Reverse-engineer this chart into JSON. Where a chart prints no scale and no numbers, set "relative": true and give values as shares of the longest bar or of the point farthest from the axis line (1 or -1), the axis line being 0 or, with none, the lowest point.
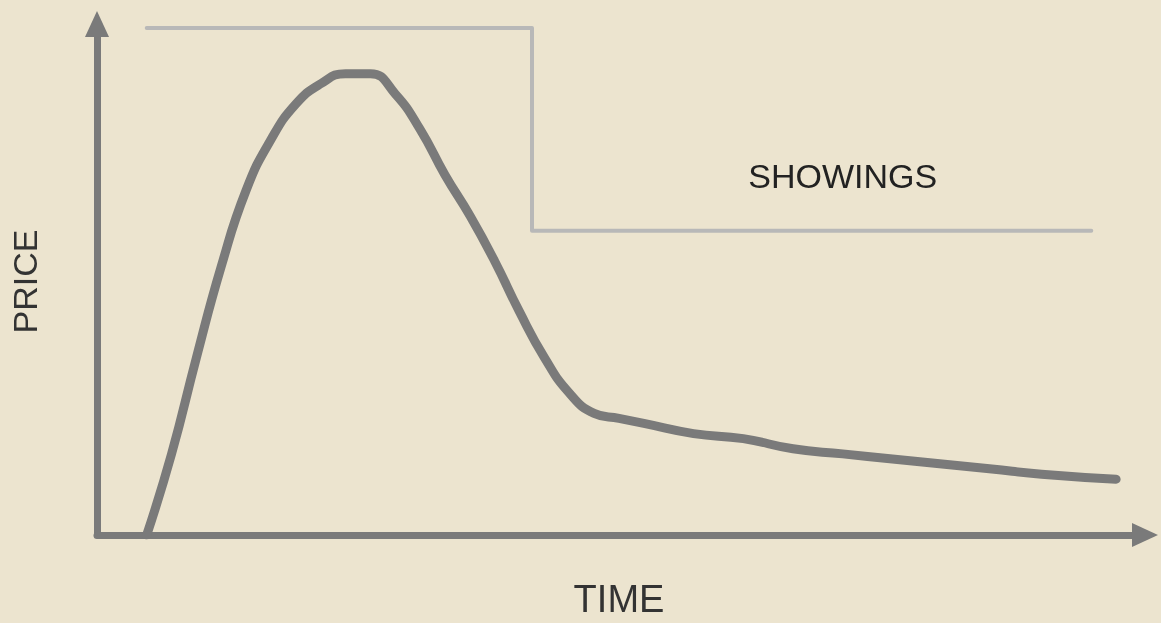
{
  "chart_data": {
    "type": "line",
    "relative": true,
    "xlabel": "TIME",
    "ylabel": "PRICE",
    "grid": false,
    "legend": false,
    "marker": "none",
    "line_style": "solid",
    "categories": [
      null,
      null,
      null,
      null,
      null,
      null,
      null,
      null,
      null,
      null,
      null,
      null,
      null,
      null,
      null,
      null,
      null,
      null,
      null,
      null,
      null,
      null,
      null,
      null,
      null,
      null,
      null,
      null,
      null,
      null,
      null,
      null,
      null,
      null,
      null,
      null,
      null,
      null,
      null,
      null,
      null,
      null,
      null
    ],
    "series": [
      {
        "color": "#7a7a7a",
        "values": [
          null,
          null,
          0,
          0.16,
          0.35,
          0.53,
          0.68,
          0.78,
          0.85,
          0.89,
          0.91,
          0.91,
          0.87,
          0.8,
          0.71,
          0.63,
          0.54,
          0.44,
          0.35,
          0.28,
          0.24,
          0.23,
          0.22,
          null,
          0.2,
          null,
          0.19,
          null,
          0.17,
          null,
          0.16,
          null,
          0.15,
          null,
          0.14,
          null,
          0.13,
          null,
          0.12,
          null,
          null,
          0.11,
          null
        ]
      },
      {
        "type": "step",
        "name": "SHOWINGS",
        "color": "#b8b8b8",
        "values": [
          null,
          null,
          1,
          1,
          1,
          1,
          1,
          1,
          1,
          1,
          1,
          1,
          1,
          1,
          1,
          1,
          1,
          1,
          0.6,
          0.6,
          0.6,
          0.6,
          0.6,
          0.6,
          0.6,
          0.6,
          0.6,
          0.6,
          0.6,
          0.6,
          0.6,
          0.6,
          0.6,
          0.6,
          0.6,
          0.6,
          0.6,
          0.6,
          0.6,
          0.6,
          0.6,
          null,
          null
        ]
      }
    ]
  }
}
